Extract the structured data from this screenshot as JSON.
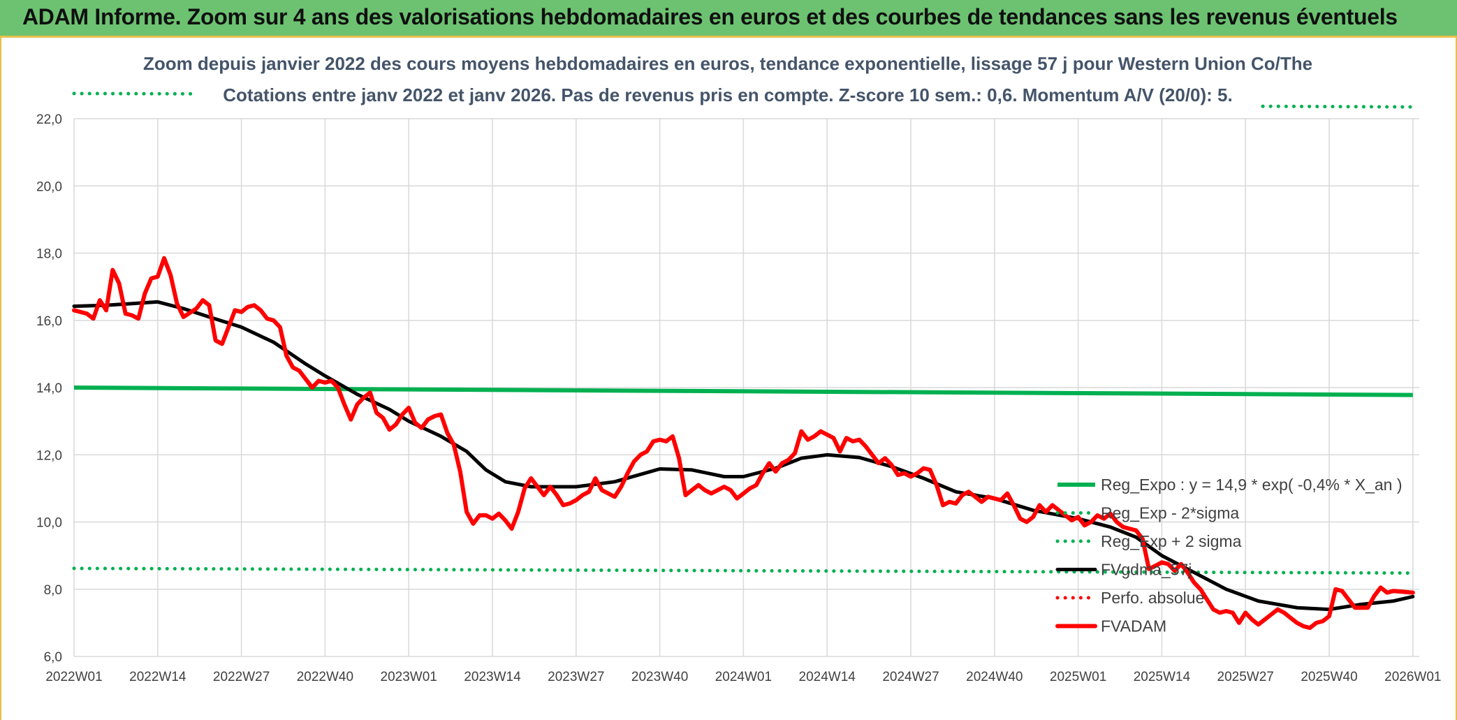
{
  "banner": {
    "title": "ADAM Informe. Zoom sur 4 ans des valorisations hebdomadaires en euros et des courbes de tendances sans les revenus éventuels"
  },
  "chart_data": {
    "type": "line",
    "title": "Zoom depuis janvier 2022 des cours moyens hebdomadaires en euros, tendance exponentielle, lissage 57 j pour Western Union Co/The",
    "subtitle": "Cotations entre janv 2022 et janv 2026. Pas de revenus pris en compte. Z-score 10 sem.: 0,6. Momentum A/V (20/0): 5.",
    "xlabel": "",
    "ylabel": "",
    "ylim": [
      6,
      22.5
    ],
    "yticks": [
      6,
      8,
      10,
      12,
      14,
      16,
      18,
      20,
      22
    ],
    "ytick_labels": [
      "6,0",
      "8,0",
      "10,0",
      "12,0",
      "14,0",
      "16,0",
      "18,0",
      "20,0",
      "22,0"
    ],
    "xticks": [
      "2022W01",
      "2022W14",
      "2022W27",
      "2022W40",
      "2023W01",
      "2023W14",
      "2023W27",
      "2023W40",
      "2024W01",
      "2024W14",
      "2024W27",
      "2024W40",
      "2025W01",
      "2025W14",
      "2025W27",
      "2025W40",
      "2026W01"
    ],
    "grid": true,
    "legend_position": "right",
    "colors": {
      "green": "#00b050",
      "black": "#000000",
      "red": "#ff0000",
      "grid": "#d9d9d9"
    },
    "series": [
      {
        "name": "Reg_Expo : y = 14,9 * exp( -0,4% *  X_an )",
        "color": "#00b050",
        "style": "solid",
        "points": [
          [
            "2022W01",
            14.0
          ],
          [
            "2026W01",
            13.78
          ]
        ]
      },
      {
        "name": "Reg_Exp - 2*sigma",
        "color": "#00b050",
        "style": "dotted",
        "points": [
          [
            "2022W01",
            8.62
          ],
          [
            "2026W01",
            8.48
          ]
        ]
      },
      {
        "name": "Reg_Exp + 2 sigma",
        "color": "#00b050",
        "style": "dotted",
        "points": [
          [
            "2022W01",
            22.75
          ],
          [
            "2026W01",
            22.35
          ]
        ]
      },
      {
        "name": "FVgdma_57j",
        "color": "#000000",
        "style": "solid",
        "points": [
          [
            "2022W01",
            16.42
          ],
          [
            "2022W06",
            16.45
          ],
          [
            "2022W10",
            16.5
          ],
          [
            "2022W14",
            16.55
          ],
          [
            "2022W18",
            16.35
          ],
          [
            "2022W22",
            16.1
          ],
          [
            "2022W27",
            15.8
          ],
          [
            "2022W32",
            15.35
          ],
          [
            "2022W37",
            14.7
          ],
          [
            "2022W40",
            14.35
          ],
          [
            "2022W45",
            13.8
          ],
          [
            "2022W50",
            13.35
          ],
          [
            "2023W01",
            13.0
          ],
          [
            "2023W06",
            12.55
          ],
          [
            "2023W10",
            12.1
          ],
          [
            "2023W13",
            11.55
          ],
          [
            "2023W16",
            11.2
          ],
          [
            "2023W20",
            11.05
          ],
          [
            "2023W27",
            11.05
          ],
          [
            "2023W33",
            11.2
          ],
          [
            "2023W40",
            11.58
          ],
          [
            "2023W45",
            11.55
          ],
          [
            "2023W50",
            11.35
          ],
          [
            "2024W01",
            11.35
          ],
          [
            "2024W06",
            11.6
          ],
          [
            "2024W10",
            11.9
          ],
          [
            "2024W14",
            12.0
          ],
          [
            "2024W19",
            11.92
          ],
          [
            "2024W24",
            11.65
          ],
          [
            "2024W29",
            11.3
          ],
          [
            "2024W34",
            10.9
          ],
          [
            "2024W40",
            10.7
          ],
          [
            "2024W46",
            10.35
          ],
          [
            "2025W01",
            10.1
          ],
          [
            "2025W06",
            9.85
          ],
          [
            "2025W10",
            9.55
          ],
          [
            "2025W14",
            9.0
          ],
          [
            "2025W19",
            8.5
          ],
          [
            "2025W24",
            8.0
          ],
          [
            "2025W29",
            7.65
          ],
          [
            "2025W35",
            7.45
          ],
          [
            "2025W40",
            7.4
          ],
          [
            "2025W45",
            7.55
          ],
          [
            "2025W50",
            7.65
          ],
          [
            "2026W01",
            7.78
          ]
        ]
      },
      {
        "name": "Perfo. absolue",
        "color": "#ff0000",
        "style": "dotted",
        "points": []
      },
      {
        "name": "FVADAM",
        "color": "#ff0000",
        "style": "solid",
        "points": [
          [
            "2022W01",
            16.3
          ],
          [
            "2022W03",
            16.2
          ],
          [
            "2022W04",
            16.05
          ],
          [
            "2022W05",
            16.6
          ],
          [
            "2022W06",
            16.3
          ],
          [
            "2022W07",
            17.5
          ],
          [
            "2022W08",
            17.1
          ],
          [
            "2022W09",
            16.2
          ],
          [
            "2022W10",
            16.15
          ],
          [
            "2022W11",
            16.05
          ],
          [
            "2022W12",
            16.8
          ],
          [
            "2022W13",
            17.25
          ],
          [
            "2022W14",
            17.3
          ],
          [
            "2022W15",
            17.85
          ],
          [
            "2022W16",
            17.35
          ],
          [
            "2022W17",
            16.5
          ],
          [
            "2022W18",
            16.1
          ],
          [
            "2022W20",
            16.35
          ],
          [
            "2022W21",
            16.6
          ],
          [
            "2022W22",
            16.45
          ],
          [
            "2022W23",
            15.4
          ],
          [
            "2022W24",
            15.3
          ],
          [
            "2022W25",
            15.8
          ],
          [
            "2022W26",
            16.3
          ],
          [
            "2022W27",
            16.25
          ],
          [
            "2022W28",
            16.4
          ],
          [
            "2022W29",
            16.45
          ],
          [
            "2022W30",
            16.3
          ],
          [
            "2022W31",
            16.05
          ],
          [
            "2022W32",
            16.0
          ],
          [
            "2022W33",
            15.8
          ],
          [
            "2022W34",
            14.95
          ],
          [
            "2022W35",
            14.6
          ],
          [
            "2022W36",
            14.5
          ],
          [
            "2022W37",
            14.25
          ],
          [
            "2022W38",
            14.0
          ],
          [
            "2022W39",
            14.2
          ],
          [
            "2022W40",
            14.15
          ],
          [
            "2022W41",
            14.2
          ],
          [
            "2022W42",
            14.0
          ],
          [
            "2022W43",
            13.5
          ],
          [
            "2022W44",
            13.05
          ],
          [
            "2022W45",
            13.5
          ],
          [
            "2022W46",
            13.7
          ],
          [
            "2022W47",
            13.85
          ],
          [
            "2022W48",
            13.25
          ],
          [
            "2022W49",
            13.1
          ],
          [
            "2022W50",
            12.75
          ],
          [
            "2022W51",
            12.9
          ],
          [
            "2022W52",
            13.2
          ],
          [
            "2023W01",
            13.4
          ],
          [
            "2023W02",
            12.95
          ],
          [
            "2023W03",
            12.8
          ],
          [
            "2023W04",
            13.05
          ],
          [
            "2023W05",
            13.15
          ],
          [
            "2023W06",
            13.2
          ],
          [
            "2023W07",
            12.65
          ],
          [
            "2023W08",
            12.3
          ],
          [
            "2023W09",
            11.5
          ],
          [
            "2023W10",
            10.3
          ],
          [
            "2023W11",
            9.95
          ],
          [
            "2023W12",
            10.2
          ],
          [
            "2023W13",
            10.2
          ],
          [
            "2023W14",
            10.1
          ],
          [
            "2023W15",
            10.25
          ],
          [
            "2023W16",
            10.05
          ],
          [
            "2023W17",
            9.8
          ],
          [
            "2023W18",
            10.3
          ],
          [
            "2023W19",
            11.0
          ],
          [
            "2023W20",
            11.3
          ],
          [
            "2023W21",
            11.05
          ],
          [
            "2023W22",
            10.8
          ],
          [
            "2023W23",
            11.05
          ],
          [
            "2023W24",
            10.8
          ],
          [
            "2023W25",
            10.5
          ],
          [
            "2023W26",
            10.55
          ],
          [
            "2023W27",
            10.65
          ],
          [
            "2023W28",
            10.8
          ],
          [
            "2023W29",
            10.9
          ],
          [
            "2023W30",
            11.3
          ],
          [
            "2023W31",
            10.95
          ],
          [
            "2023W32",
            10.85
          ],
          [
            "2023W33",
            10.75
          ],
          [
            "2023W34",
            11.05
          ],
          [
            "2023W35",
            11.45
          ],
          [
            "2023W36",
            11.8
          ],
          [
            "2023W37",
            12.0
          ],
          [
            "2023W38",
            12.1
          ],
          [
            "2023W39",
            12.4
          ],
          [
            "2023W40",
            12.45
          ],
          [
            "2023W41",
            12.4
          ],
          [
            "2023W42",
            12.55
          ],
          [
            "2023W43",
            11.9
          ],
          [
            "2023W44",
            10.8
          ],
          [
            "2023W45",
            10.95
          ],
          [
            "2023W46",
            11.1
          ],
          [
            "2023W47",
            10.95
          ],
          [
            "2023W48",
            10.85
          ],
          [
            "2023W49",
            10.95
          ],
          [
            "2023W50",
            11.05
          ],
          [
            "2023W51",
            10.95
          ],
          [
            "2023W52",
            10.7
          ],
          [
            "2024W01",
            10.85
          ],
          [
            "2024W02",
            11.0
          ],
          [
            "2024W03",
            11.1
          ],
          [
            "2024W04",
            11.45
          ],
          [
            "2024W05",
            11.75
          ],
          [
            "2024W06",
            11.5
          ],
          [
            "2024W07",
            11.75
          ],
          [
            "2024W08",
            11.85
          ],
          [
            "2024W09",
            12.05
          ],
          [
            "2024W10",
            12.7
          ],
          [
            "2024W11",
            12.45
          ],
          [
            "2024W12",
            12.55
          ],
          [
            "2024W13",
            12.7
          ],
          [
            "2024W14",
            12.6
          ],
          [
            "2024W15",
            12.5
          ],
          [
            "2024W16",
            12.1
          ],
          [
            "2024W17",
            12.5
          ],
          [
            "2024W18",
            12.4
          ],
          [
            "2024W19",
            12.45
          ],
          [
            "2024W20",
            12.25
          ],
          [
            "2024W21",
            12.0
          ],
          [
            "2024W22",
            11.75
          ],
          [
            "2024W23",
            11.9
          ],
          [
            "2024W24",
            11.7
          ],
          [
            "2024W25",
            11.4
          ],
          [
            "2024W26",
            11.45
          ],
          [
            "2024W27",
            11.35
          ],
          [
            "2024W28",
            11.45
          ],
          [
            "2024W29",
            11.6
          ],
          [
            "2024W30",
            11.55
          ],
          [
            "2024W31",
            11.1
          ],
          [
            "2024W32",
            10.5
          ],
          [
            "2024W33",
            10.6
          ],
          [
            "2024W34",
            10.55
          ],
          [
            "2024W35",
            10.8
          ],
          [
            "2024W36",
            10.9
          ],
          [
            "2024W37",
            10.75
          ],
          [
            "2024W38",
            10.6
          ],
          [
            "2024W39",
            10.75
          ],
          [
            "2024W40",
            10.7
          ],
          [
            "2024W41",
            10.65
          ],
          [
            "2024W42",
            10.85
          ],
          [
            "2024W43",
            10.5
          ],
          [
            "2024W44",
            10.1
          ],
          [
            "2024W45",
            10.0
          ],
          [
            "2024W46",
            10.15
          ],
          [
            "2024W47",
            10.5
          ],
          [
            "2024W48",
            10.3
          ],
          [
            "2024W49",
            10.5
          ],
          [
            "2024W50",
            10.35
          ],
          [
            "2024W51",
            10.2
          ],
          [
            "2024W52",
            10.05
          ],
          [
            "2025W01",
            10.15
          ],
          [
            "2025W02",
            9.9
          ],
          [
            "2025W03",
            10.0
          ],
          [
            "2025W04",
            10.2
          ],
          [
            "2025W05",
            10.1
          ],
          [
            "2025W06",
            10.25
          ],
          [
            "2025W07",
            10.0
          ],
          [
            "2025W08",
            9.85
          ],
          [
            "2025W09",
            9.8
          ],
          [
            "2025W10",
            9.75
          ],
          [
            "2025W11",
            9.5
          ],
          [
            "2025W12",
            8.6
          ],
          [
            "2025W13",
            8.7
          ],
          [
            "2025W14",
            8.8
          ],
          [
            "2025W15",
            8.75
          ],
          [
            "2025W16",
            8.55
          ],
          [
            "2025W17",
            8.75
          ],
          [
            "2025W18",
            8.5
          ],
          [
            "2025W19",
            8.2
          ],
          [
            "2025W20",
            8.0
          ],
          [
            "2025W21",
            7.7
          ],
          [
            "2025W22",
            7.4
          ],
          [
            "2025W23",
            7.3
          ],
          [
            "2025W24",
            7.35
          ],
          [
            "2025W25",
            7.3
          ],
          [
            "2025W26",
            7.0
          ],
          [
            "2025W27",
            7.3
          ],
          [
            "2025W28",
            7.1
          ],
          [
            "2025W29",
            6.95
          ],
          [
            "2025W30",
            7.1
          ],
          [
            "2025W31",
            7.25
          ],
          [
            "2025W32",
            7.4
          ],
          [
            "2025W33",
            7.3
          ],
          [
            "2025W34",
            7.15
          ],
          [
            "2025W35",
            7.0
          ],
          [
            "2025W36",
            6.9
          ],
          [
            "2025W37",
            6.85
          ],
          [
            "2025W38",
            7.0
          ],
          [
            "2025W39",
            7.05
          ],
          [
            "2025W40",
            7.2
          ],
          [
            "2025W41",
            8.0
          ],
          [
            "2025W42",
            7.95
          ],
          [
            "2025W43",
            7.7
          ],
          [
            "2025W44",
            7.45
          ],
          [
            "2025W45",
            7.45
          ],
          [
            "2025W46",
            7.45
          ],
          [
            "2025W47",
            7.8
          ],
          [
            "2025W48",
            8.05
          ],
          [
            "2025W49",
            7.9
          ],
          [
            "2025W50",
            7.95
          ],
          [
            "2026W01",
            7.9
          ]
        ]
      }
    ]
  }
}
